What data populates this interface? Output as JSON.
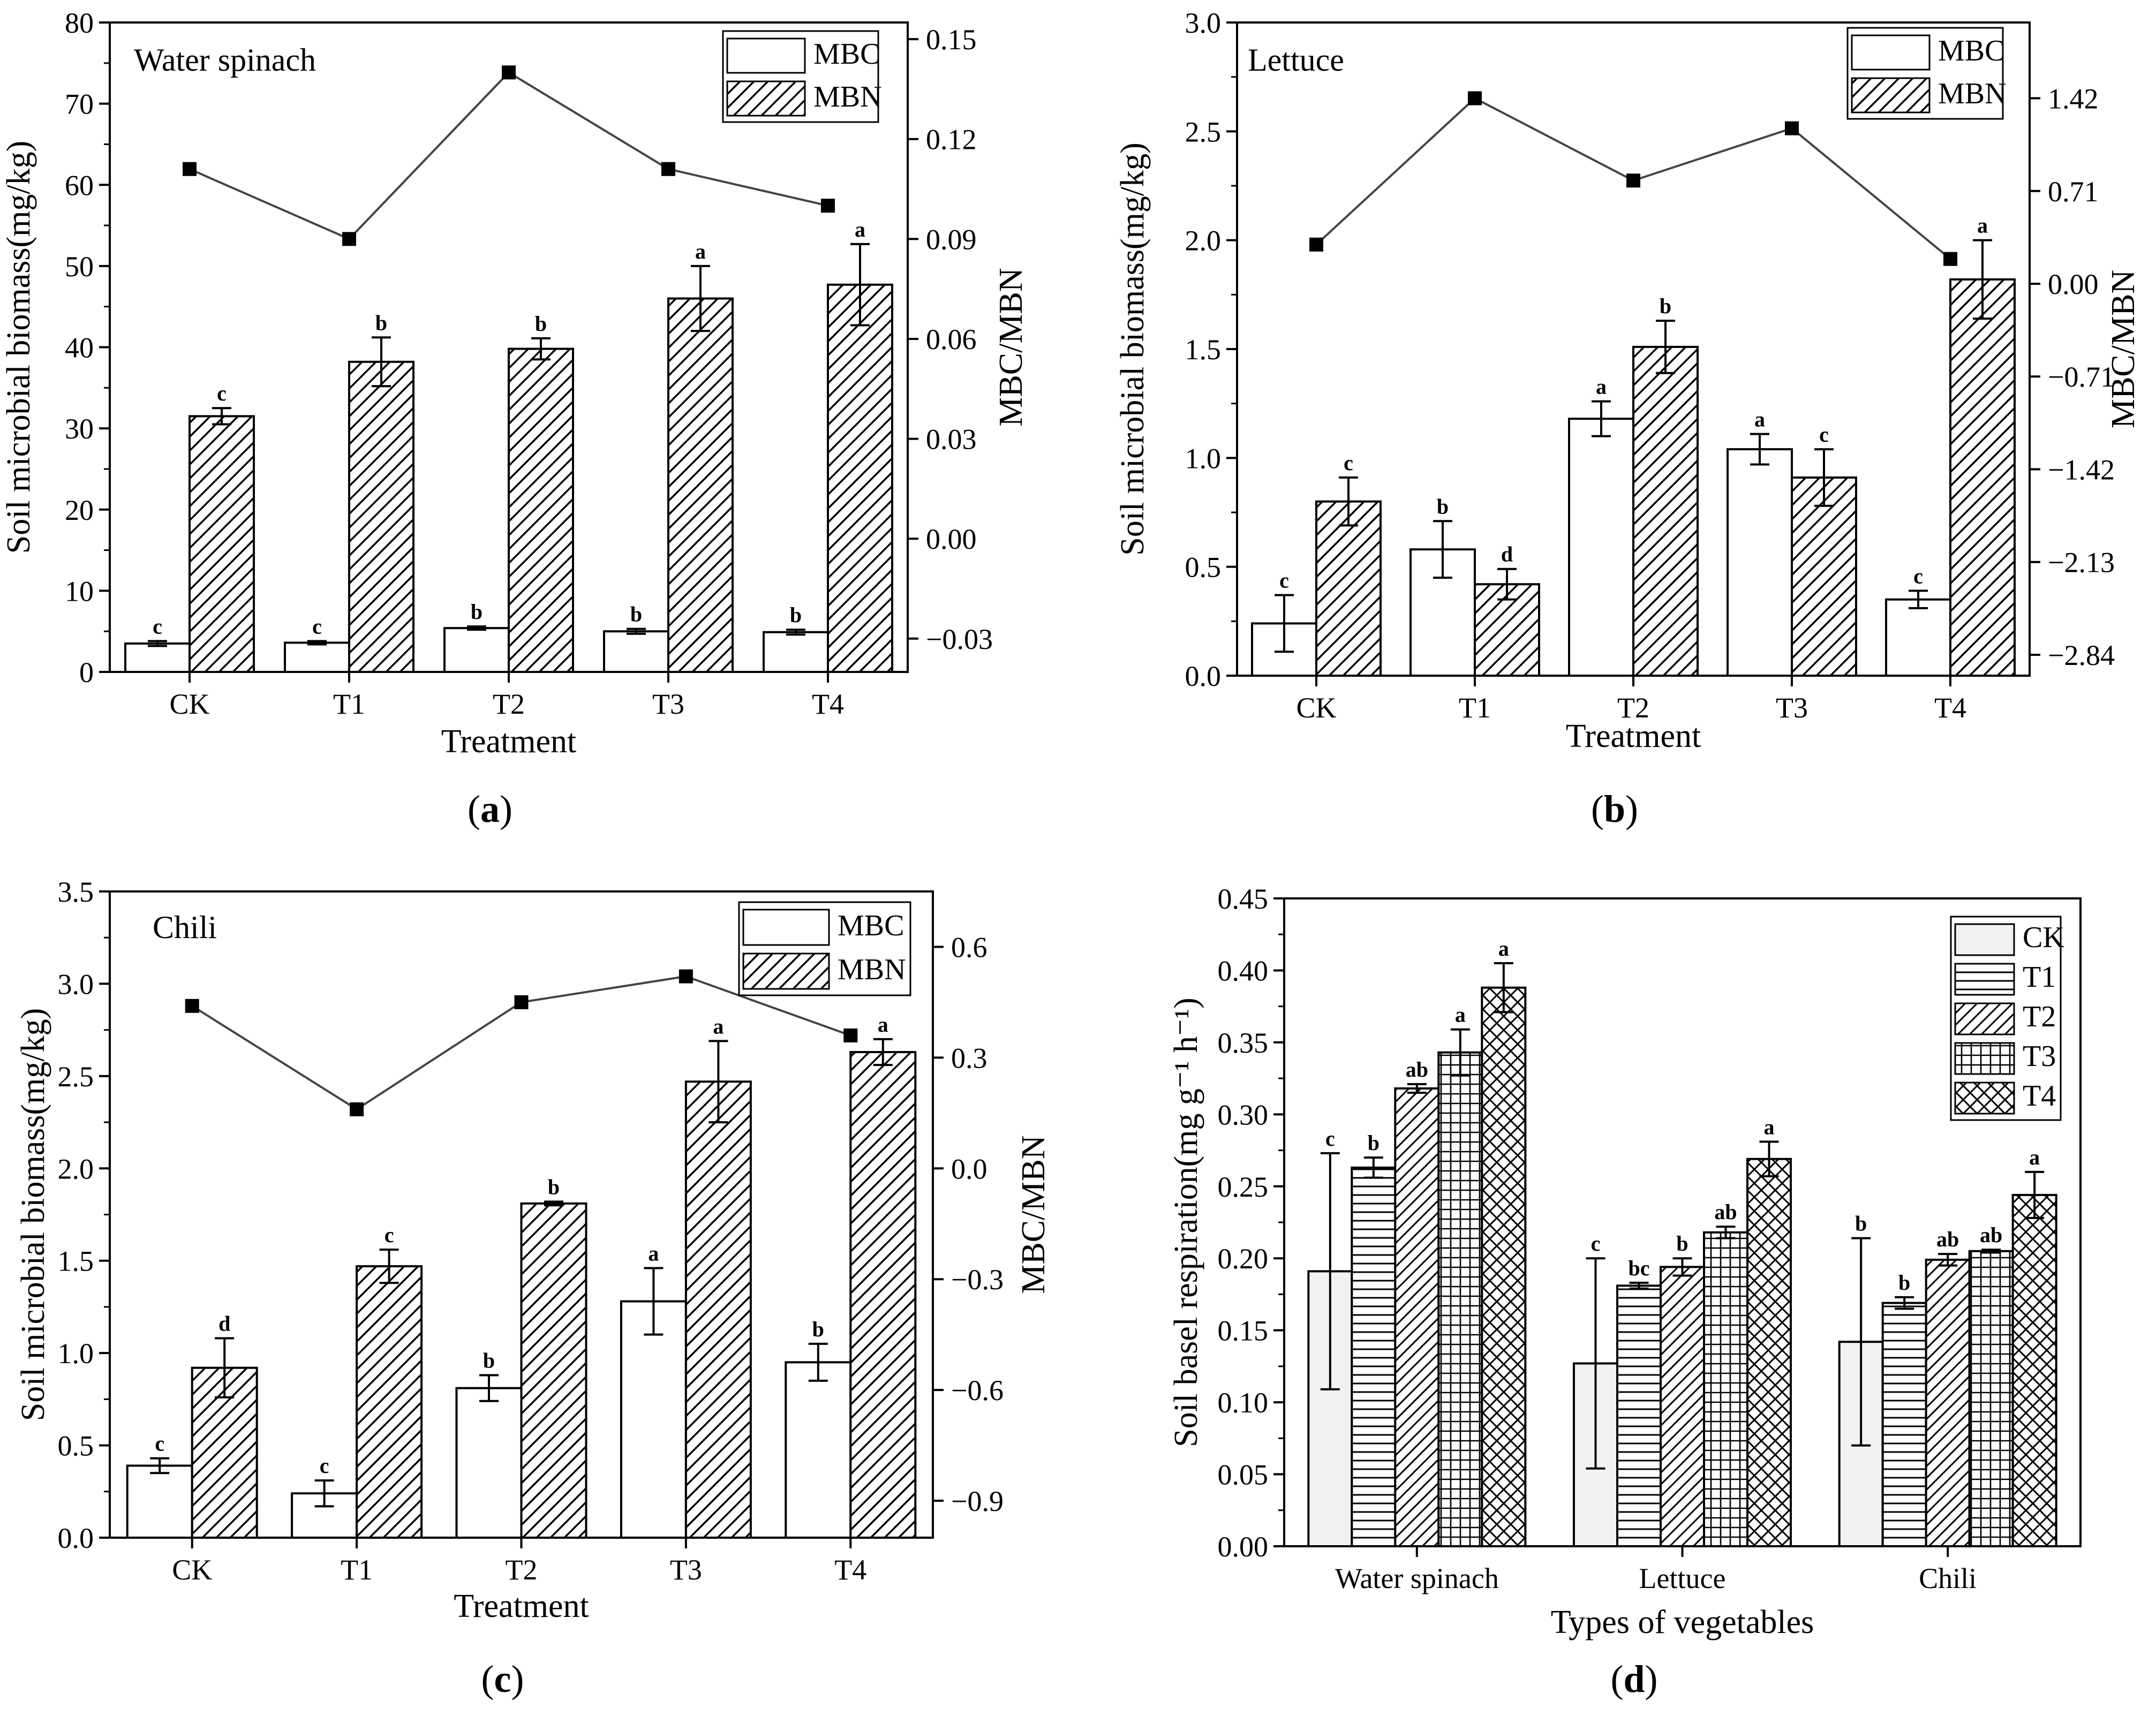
{
  "chart_data": [
    {
      "id": "a",
      "type": "bar",
      "panel_label": "a",
      "title": "Water spinach",
      "xlabel": "Treatment",
      "ylabel": "Soil microbial biomass(mg/kg)",
      "y2label": "MBC/MBN",
      "ylim": [
        0,
        80
      ],
      "yticks": [
        0,
        10,
        20,
        30,
        40,
        50,
        60,
        70,
        80
      ],
      "ytick_labels": [
        "0",
        "10",
        "20",
        "30",
        "40",
        "50",
        "60",
        "70",
        "80"
      ],
      "y2lim": [
        -0.04,
        0.155
      ],
      "y2ticks": [
        -0.03,
        0,
        0.03,
        0.06,
        0.09,
        0.12,
        0.15
      ],
      "y2tick_labels": [
        "−0.03",
        "0.00",
        "0.03",
        "0.06",
        "0.09",
        "0.12",
        "0.15"
      ],
      "categories": [
        "CK",
        "T1",
        "T2",
        "T3",
        "T4"
      ],
      "series": [
        {
          "name": "MBC",
          "pattern": "white",
          "values": [
            3.5,
            3.6,
            5.4,
            5.0,
            4.9
          ],
          "errors": [
            0.3,
            0.2,
            0.2,
            0.3,
            0.3
          ],
          "labels": [
            "c",
            "c",
            "b",
            "b",
            "b"
          ]
        },
        {
          "name": "MBN",
          "pattern": "hatch",
          "values": [
            31.5,
            38.2,
            39.8,
            46.0,
            47.7
          ],
          "errors": [
            1.0,
            3.0,
            1.3,
            4.0,
            5.0
          ],
          "labels": [
            "c",
            "b",
            "b",
            "a",
            "a"
          ]
        }
      ],
      "line": {
        "name": "MBC/MBN",
        "axis": "right",
        "values": [
          0.111,
          0.09,
          0.14,
          0.111,
          0.1
        ]
      },
      "legend": "top-right"
    },
    {
      "id": "b",
      "type": "bar",
      "panel_label": "b",
      "title": "Lettuce",
      "xlabel": "Treatment",
      "ylabel": "Soil microbial biomass(mg/kg)",
      "y2label": "MBC/MBN",
      "ylim": [
        0,
        3.0
      ],
      "yticks": [
        0,
        0.5,
        1.0,
        1.5,
        2.0,
        2.5,
        3.0
      ],
      "ytick_labels": [
        "0.0",
        "0.5",
        "1.0",
        "1.5",
        "2.0",
        "2.5",
        "3.0"
      ],
      "y2lim": [
        -3.0,
        2.0
      ],
      "y2ticks": [
        -2.84,
        -2.13,
        -1.42,
        -0.71,
        0,
        0.71,
        1.42
      ],
      "y2tick_labels": [
        "−2.84",
        "−2.13",
        "−1.42",
        "−0.71",
        "0.00",
        "0.71",
        "1.42"
      ],
      "categories": [
        "CK",
        "T1",
        "T2",
        "T3",
        "T4"
      ],
      "series": [
        {
          "name": "MBC",
          "pattern": "white",
          "values": [
            0.24,
            0.58,
            1.18,
            1.04,
            0.35
          ],
          "errors": [
            0.13,
            0.13,
            0.08,
            0.07,
            0.04
          ],
          "labels": [
            "c",
            "b",
            "a",
            "a",
            "c"
          ]
        },
        {
          "name": "MBN",
          "pattern": "hatch",
          "values": [
            0.8,
            0.42,
            1.51,
            0.91,
            1.82
          ],
          "errors": [
            0.11,
            0.07,
            0.12,
            0.13,
            0.18
          ],
          "labels": [
            "c",
            "d",
            "b",
            "c",
            "a"
          ]
        }
      ],
      "line": {
        "name": "MBC/MBN",
        "axis": "right",
        "values": [
          0.3,
          1.42,
          0.79,
          1.19,
          0.19
        ]
      },
      "legend": "top-right"
    },
    {
      "id": "c",
      "type": "bar",
      "panel_label": "c",
      "title": "Chili",
      "xlabel": "Treatment",
      "ylabel": "Soil microbial biomass(mg/kg)",
      "y2label": "MBC/MBN",
      "ylim": [
        0,
        3.5
      ],
      "yticks": [
        0,
        0.5,
        1.0,
        1.5,
        2.0,
        2.5,
        3.0,
        3.5
      ],
      "ytick_labels": [
        "0.0",
        "0.5",
        "1.0",
        "1.5",
        "2.0",
        "2.5",
        "3.0",
        "3.5"
      ],
      "y2lim": [
        -1.0,
        0.75
      ],
      "y2ticks": [
        -0.9,
        -0.6,
        -0.3,
        0,
        0.3,
        0.6
      ],
      "y2tick_labels": [
        "−0.9",
        "−0.6",
        "−0.3",
        "0.0",
        "0.3",
        "0.6"
      ],
      "categories": [
        "CK",
        "T1",
        "T2",
        "T3",
        "T4"
      ],
      "series": [
        {
          "name": "MBC",
          "pattern": "white",
          "values": [
            0.39,
            0.24,
            0.81,
            1.28,
            0.95
          ],
          "errors": [
            0.04,
            0.07,
            0.07,
            0.18,
            0.1
          ],
          "labels": [
            "c",
            "c",
            "b",
            "a",
            "b"
          ]
        },
        {
          "name": "MBN",
          "pattern": "hatch",
          "values": [
            0.92,
            1.47,
            1.81,
            2.47,
            2.63
          ],
          "errors": [
            0.16,
            0.09,
            0.01,
            0.22,
            0.07
          ],
          "labels": [
            "d",
            "c",
            "b",
            "a",
            "a"
          ]
        }
      ],
      "line": {
        "name": "MBC/MBN",
        "axis": "right",
        "values": [
          0.44,
          0.16,
          0.45,
          0.52,
          0.36
        ]
      },
      "legend": "top-right"
    },
    {
      "id": "d",
      "type": "bar",
      "panel_label": "d",
      "title": "",
      "xlabel": "Types of vegetables",
      "ylabel": "Soil basel respiration(mg g⁻¹ h⁻¹)",
      "ylim": [
        0,
        0.45
      ],
      "yticks": [
        0,
        0.05,
        0.1,
        0.15,
        0.2,
        0.25,
        0.3,
        0.35,
        0.4,
        0.45
      ],
      "ytick_labels": [
        "0.00",
        "0.05",
        "0.10",
        "0.15",
        "0.20",
        "0.25",
        "0.30",
        "0.35",
        "0.40",
        "0.45"
      ],
      "categories": [
        "Water spinach",
        "Lettuce",
        "Chili"
      ],
      "series": [
        {
          "name": "CK",
          "pattern": "grey",
          "values": [
            0.191,
            0.127,
            0.142
          ],
          "errors": [
            0.082,
            0.073,
            0.072
          ],
          "labels": [
            "c",
            "c",
            "b"
          ]
        },
        {
          "name": "T1",
          "pattern": "horizontal",
          "values": [
            0.263,
            0.181,
            0.169
          ],
          "errors": [
            0.007,
            0.002,
            0.004
          ],
          "labels": [
            "b",
            "bc",
            "b"
          ]
        },
        {
          "name": "T2",
          "pattern": "diagonal",
          "values": [
            0.318,
            0.194,
            0.199
          ],
          "errors": [
            0.003,
            0.006,
            0.004
          ],
          "labels": [
            "ab",
            "b",
            "ab"
          ]
        },
        {
          "name": "T3",
          "pattern": "grid",
          "values": [
            0.343,
            0.218,
            0.205
          ],
          "errors": [
            0.016,
            0.004,
            0.001
          ],
          "labels": [
            "a",
            "ab",
            "ab"
          ]
        },
        {
          "name": "T4",
          "pattern": "crosshatch",
          "values": [
            0.388,
            0.269,
            0.244
          ],
          "errors": [
            0.017,
            0.012,
            0.016
          ],
          "labels": [
            "a",
            "a",
            "a"
          ]
        }
      ],
      "legend": "top-right"
    }
  ]
}
